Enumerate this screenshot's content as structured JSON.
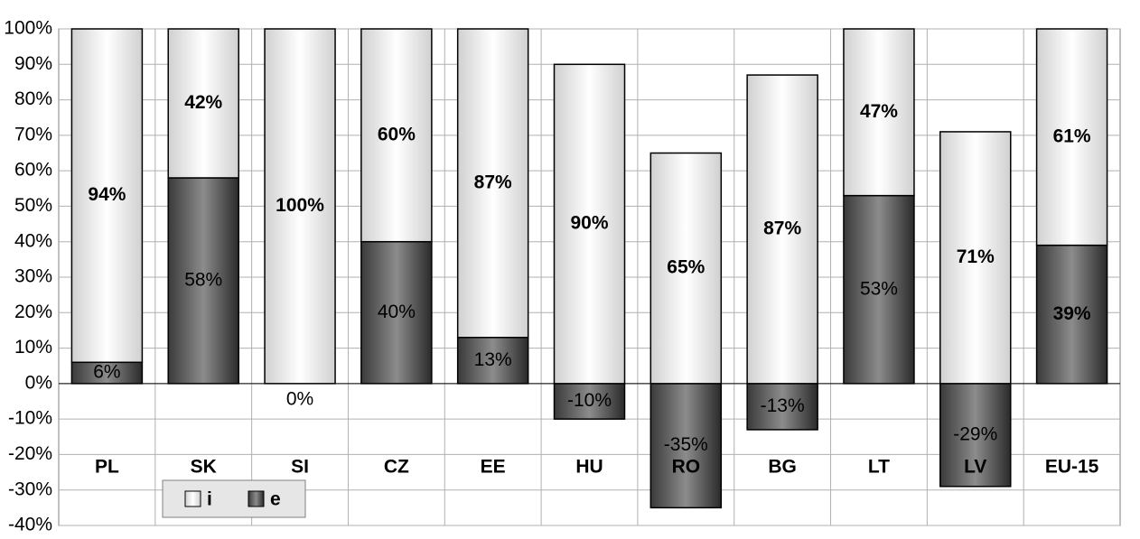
{
  "chart_data": {
    "type": "bar",
    "stacked": true,
    "categories": [
      "PL",
      "SK",
      "SI",
      "CZ",
      "EE",
      "HU",
      "RO",
      "BG",
      "LT",
      "LV",
      "EU-15"
    ],
    "series": [
      {
        "name": "e",
        "color": "#8c8c8c",
        "values": [
          6,
          58,
          0,
          40,
          13,
          -10,
          -35,
          -13,
          53,
          -29,
          39
        ],
        "value_labels": [
          "6%",
          "58%",
          "0%",
          "40%",
          "13%",
          "-10%",
          "-35%",
          "-13%",
          "53%",
          "-29%",
          "39%"
        ]
      },
      {
        "name": "i",
        "color": "#d0d0d0",
        "values": [
          94,
          42,
          100,
          60,
          87,
          90,
          65,
          87,
          47,
          71,
          61
        ],
        "value_labels": [
          "94%",
          "42%",
          "100%",
          "60%",
          "87%",
          "90%",
          "65%",
          "87%",
          "47%",
          "71%",
          "61%"
        ]
      }
    ],
    "ylim": [
      -40,
      100
    ],
    "yticks": [
      {
        "value": -40,
        "label": "-40%"
      },
      {
        "value": -30,
        "label": "-30%"
      },
      {
        "value": -20,
        "label": "-20%"
      },
      {
        "value": -10,
        "label": "-10%"
      },
      {
        "value": 0,
        "label": "0%"
      },
      {
        "value": 10,
        "label": "10%"
      },
      {
        "value": 20,
        "label": "20%"
      },
      {
        "value": 30,
        "label": "30%"
      },
      {
        "value": 40,
        "label": "40%"
      },
      {
        "value": 50,
        "label": "50%"
      },
      {
        "value": 60,
        "label": "60%"
      },
      {
        "value": 70,
        "label": "70%"
      },
      {
        "value": 80,
        "label": "80%"
      },
      {
        "value": 90,
        "label": "90%"
      },
      {
        "value": 100,
        "label": "100%"
      }
    ],
    "grid": true,
    "legend": "bottom-left"
  }
}
